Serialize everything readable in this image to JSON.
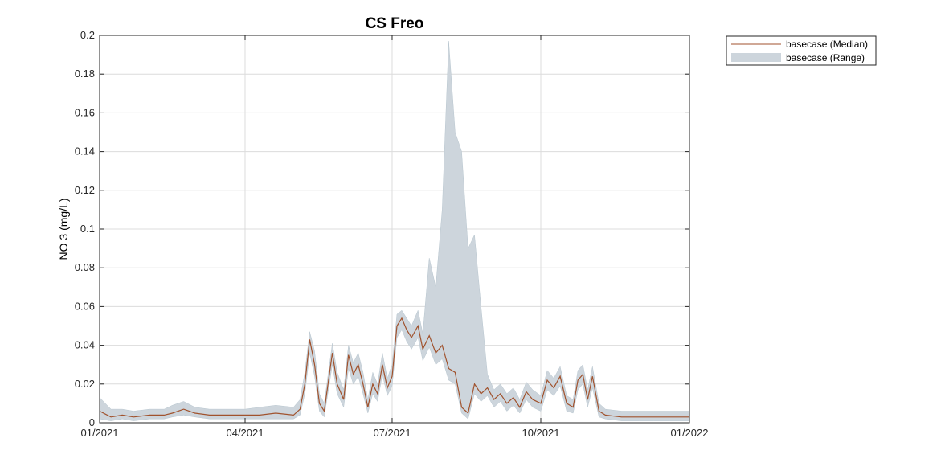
{
  "chart_data": {
    "type": "area",
    "title": "CS Freo",
    "xlabel": "",
    "ylabel": "NO 3 (mg/L)",
    "xlim": [
      "2021-01-01",
      "2022-01-01"
    ],
    "ylim": [
      0,
      0.2
    ],
    "x_ticks": [
      "2021-01-01",
      "2021-04-01",
      "2021-07-01",
      "2021-10-01",
      "2022-01-01"
    ],
    "x_tick_labels": [
      "01/2021",
      "04/2021",
      "07/2021",
      "10/2021",
      "01/2022"
    ],
    "y_ticks": [
      0,
      0.02,
      0.04,
      0.06,
      0.08,
      0.1,
      0.12,
      0.14,
      0.16,
      0.18,
      0.2
    ],
    "y_tick_labels": [
      "0",
      "0.02",
      "0.04",
      "0.06",
      "0.08",
      "0.1",
      "0.12",
      "0.14",
      "0.16",
      "0.18",
      "0.2"
    ],
    "grid": true,
    "legend_position": "outside-top-right",
    "series": [
      {
        "name": "basecase (Median)",
        "kind": "line",
        "color": "#a0522d",
        "x": [
          "2021-01-01",
          "2021-01-08",
          "2021-01-15",
          "2021-01-22",
          "2021-02-01",
          "2021-02-10",
          "2021-02-15",
          "2021-02-22",
          "2021-03-01",
          "2021-03-10",
          "2021-03-20",
          "2021-04-01",
          "2021-04-10",
          "2021-04-20",
          "2021-05-01",
          "2021-05-05",
          "2021-05-08",
          "2021-05-11",
          "2021-05-14",
          "2021-05-17",
          "2021-05-20",
          "2021-05-25",
          "2021-05-28",
          "2021-06-01",
          "2021-06-04",
          "2021-06-07",
          "2021-06-10",
          "2021-06-13",
          "2021-06-16",
          "2021-06-19",
          "2021-06-22",
          "2021-06-25",
          "2021-06-28",
          "2021-07-01",
          "2021-07-04",
          "2021-07-07",
          "2021-07-10",
          "2021-07-13",
          "2021-07-17",
          "2021-07-20",
          "2021-07-24",
          "2021-07-28",
          "2021-08-01",
          "2021-08-05",
          "2021-08-09",
          "2021-08-13",
          "2021-08-17",
          "2021-08-21",
          "2021-08-25",
          "2021-08-29",
          "2021-09-02",
          "2021-09-06",
          "2021-09-10",
          "2021-09-14",
          "2021-09-18",
          "2021-09-22",
          "2021-09-26",
          "2021-10-01",
          "2021-10-05",
          "2021-10-09",
          "2021-10-13",
          "2021-10-17",
          "2021-10-21",
          "2021-10-24",
          "2021-10-27",
          "2021-10-30",
          "2021-11-02",
          "2021-11-06",
          "2021-11-10",
          "2021-11-20",
          "2021-12-01",
          "2021-12-10",
          "2021-12-20",
          "2022-01-01"
        ],
        "y": [
          0.006,
          0.003,
          0.004,
          0.003,
          0.004,
          0.004,
          0.005,
          0.007,
          0.005,
          0.004,
          0.004,
          0.004,
          0.004,
          0.005,
          0.004,
          0.007,
          0.02,
          0.043,
          0.03,
          0.01,
          0.006,
          0.036,
          0.02,
          0.012,
          0.035,
          0.025,
          0.03,
          0.02,
          0.008,
          0.02,
          0.015,
          0.03,
          0.018,
          0.024,
          0.05,
          0.054,
          0.048,
          0.044,
          0.05,
          0.038,
          0.045,
          0.036,
          0.04,
          0.028,
          0.026,
          0.008,
          0.005,
          0.02,
          0.015,
          0.018,
          0.012,
          0.015,
          0.01,
          0.013,
          0.008,
          0.016,
          0.012,
          0.01,
          0.022,
          0.018,
          0.024,
          0.01,
          0.008,
          0.022,
          0.025,
          0.012,
          0.024,
          0.006,
          0.004,
          0.003,
          0.003,
          0.003,
          0.003,
          0.003
        ]
      },
      {
        "name": "basecase (Range)",
        "kind": "band",
        "color": "#cdd5dc",
        "x": [
          "2021-01-01",
          "2021-01-08",
          "2021-01-15",
          "2021-01-22",
          "2021-02-01",
          "2021-02-10",
          "2021-02-15",
          "2021-02-22",
          "2021-03-01",
          "2021-03-10",
          "2021-03-20",
          "2021-04-01",
          "2021-04-10",
          "2021-04-20",
          "2021-05-01",
          "2021-05-05",
          "2021-05-08",
          "2021-05-11",
          "2021-05-14",
          "2021-05-17",
          "2021-05-20",
          "2021-05-25",
          "2021-05-28",
          "2021-06-01",
          "2021-06-04",
          "2021-06-07",
          "2021-06-10",
          "2021-06-13",
          "2021-06-16",
          "2021-06-19",
          "2021-06-22",
          "2021-06-25",
          "2021-06-28",
          "2021-07-01",
          "2021-07-04",
          "2021-07-07",
          "2021-07-10",
          "2021-07-13",
          "2021-07-17",
          "2021-07-20",
          "2021-07-24",
          "2021-07-28",
          "2021-08-01",
          "2021-08-05",
          "2021-08-09",
          "2021-08-13",
          "2021-08-17",
          "2021-08-21",
          "2021-08-25",
          "2021-08-29",
          "2021-09-02",
          "2021-09-06",
          "2021-09-10",
          "2021-09-14",
          "2021-09-18",
          "2021-09-22",
          "2021-09-26",
          "2021-10-01",
          "2021-10-05",
          "2021-10-09",
          "2021-10-13",
          "2021-10-17",
          "2021-10-21",
          "2021-10-24",
          "2021-10-27",
          "2021-10-30",
          "2021-11-02",
          "2021-11-06",
          "2021-11-10",
          "2021-11-20",
          "2021-12-01",
          "2021-12-10",
          "2021-12-20",
          "2022-01-01"
        ],
        "lower": [
          0.002,
          0.001,
          0.002,
          0.001,
          0.002,
          0.002,
          0.003,
          0.004,
          0.003,
          0.002,
          0.002,
          0.002,
          0.002,
          0.002,
          0.002,
          0.004,
          0.015,
          0.036,
          0.024,
          0.006,
          0.003,
          0.03,
          0.015,
          0.008,
          0.028,
          0.02,
          0.024,
          0.015,
          0.005,
          0.015,
          0.011,
          0.025,
          0.014,
          0.019,
          0.044,
          0.048,
          0.042,
          0.038,
          0.044,
          0.032,
          0.039,
          0.03,
          0.033,
          0.022,
          0.02,
          0.005,
          0.002,
          0.015,
          0.011,
          0.014,
          0.008,
          0.011,
          0.006,
          0.009,
          0.005,
          0.012,
          0.008,
          0.006,
          0.017,
          0.014,
          0.019,
          0.006,
          0.005,
          0.017,
          0.02,
          0.008,
          0.018,
          0.003,
          0.002,
          0.001,
          0.001,
          0.001,
          0.001,
          0.001
        ],
        "upper": [
          0.013,
          0.007,
          0.007,
          0.006,
          0.007,
          0.007,
          0.009,
          0.011,
          0.008,
          0.007,
          0.007,
          0.007,
          0.008,
          0.009,
          0.008,
          0.012,
          0.026,
          0.047,
          0.037,
          0.015,
          0.01,
          0.041,
          0.026,
          0.017,
          0.04,
          0.031,
          0.036,
          0.026,
          0.012,
          0.026,
          0.02,
          0.036,
          0.023,
          0.03,
          0.056,
          0.058,
          0.054,
          0.05,
          0.058,
          0.046,
          0.085,
          0.07,
          0.11,
          0.197,
          0.15,
          0.14,
          0.09,
          0.097,
          0.06,
          0.025,
          0.017,
          0.02,
          0.015,
          0.018,
          0.012,
          0.021,
          0.017,
          0.014,
          0.027,
          0.023,
          0.029,
          0.014,
          0.012,
          0.027,
          0.03,
          0.017,
          0.029,
          0.01,
          0.007,
          0.006,
          0.006,
          0.006,
          0.006,
          0.006
        ]
      }
    ]
  }
}
